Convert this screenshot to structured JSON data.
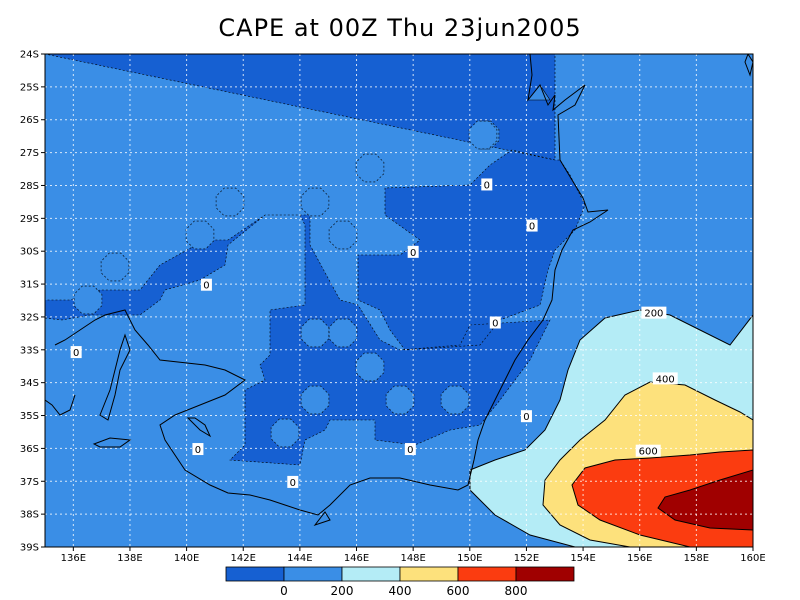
{
  "title": "CAPE at 00Z Thu 23jun2005",
  "colors": {
    "band_below_0": "#1660d2",
    "band_0_200": "#3a8ee6",
    "band_200_400": "#b4ecf6",
    "band_400_600": "#fde17c",
    "band_600_800": "#fb3c10",
    "band_above_800": "#a00000",
    "coastline": "#000000",
    "grid": "#ffffff"
  },
  "map": {
    "lon_range": [
      135,
      160
    ],
    "lat_range": [
      -39,
      -24
    ],
    "lon_ticks": [
      {
        "value": 136,
        "label": "136E"
      },
      {
        "value": 138,
        "label": "138E"
      },
      {
        "value": 140,
        "label": "140E"
      },
      {
        "value": 142,
        "label": "142E"
      },
      {
        "value": 144,
        "label": "144E"
      },
      {
        "value": 146,
        "label": "146E"
      },
      {
        "value": 148,
        "label": "148E"
      },
      {
        "value": 150,
        "label": "150E"
      },
      {
        "value": 152,
        "label": "152E"
      },
      {
        "value": 154,
        "label": "154E"
      },
      {
        "value": 156,
        "label": "156E"
      },
      {
        "value": 158,
        "label": "158E"
      },
      {
        "value": 160,
        "label": "160E"
      }
    ],
    "lat_ticks": [
      {
        "value": -24,
        "label": "24S"
      },
      {
        "value": -25,
        "label": "25S"
      },
      {
        "value": -26,
        "label": "26S"
      },
      {
        "value": -27,
        "label": "27S"
      },
      {
        "value": -28,
        "label": "28S"
      },
      {
        "value": -29,
        "label": "29S"
      },
      {
        "value": -30,
        "label": "30S"
      },
      {
        "value": -31,
        "label": "31S"
      },
      {
        "value": -32,
        "label": "32S"
      },
      {
        "value": -33,
        "label": "33S"
      },
      {
        "value": -34,
        "label": "34S"
      },
      {
        "value": -35,
        "label": "35S"
      },
      {
        "value": -36,
        "label": "36S"
      },
      {
        "value": -37,
        "label": "37S"
      },
      {
        "value": -38,
        "label": "38S"
      },
      {
        "value": -39,
        "label": "39S"
      }
    ],
    "contour_labels": [
      {
        "text": "0",
        "lon": 150.6,
        "lat": -28.0
      },
      {
        "text": "0",
        "lon": 152.2,
        "lat": -29.25
      },
      {
        "text": "0",
        "lon": 148.0,
        "lat": -30.05
      },
      {
        "text": "0",
        "lon": 140.7,
        "lat": -31.05
      },
      {
        "text": "0",
        "lon": 136.1,
        "lat": -33.1
      },
      {
        "text": "0",
        "lon": 150.9,
        "lat": -32.2
      },
      {
        "text": "0",
        "lon": 152.0,
        "lat": -35.05
      },
      {
        "text": "0",
        "lon": 140.4,
        "lat": -36.05
      },
      {
        "text": "0",
        "lon": 147.9,
        "lat": -36.05
      },
      {
        "text": "0",
        "lon": 143.75,
        "lat": -37.05
      },
      {
        "text": "200",
        "lon": 156.5,
        "lat": -31.9
      },
      {
        "text": "400",
        "lon": 156.9,
        "lat": -33.9
      },
      {
        "text": "600",
        "lon": 156.3,
        "lat": -36.1
      }
    ]
  },
  "colorbar": {
    "labels": [
      "0",
      "200",
      "400",
      "600",
      "800"
    ]
  }
}
